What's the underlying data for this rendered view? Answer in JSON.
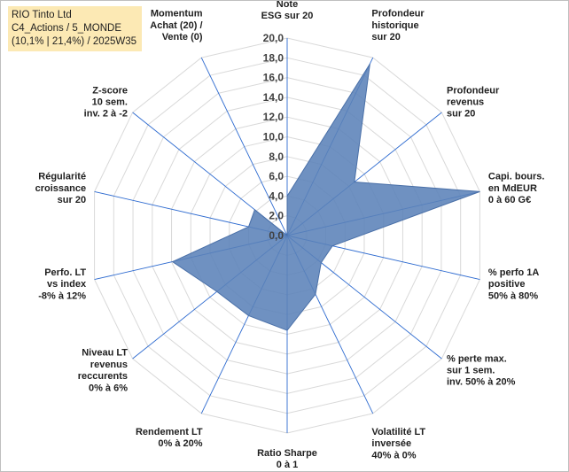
{
  "header": {
    "line1": "RIO Tinto Ltd",
    "line2": "C4_Actions / 5_MONDE",
    "line3": "(10,1% | 21,4%) / 2025W35"
  },
  "chart_data": {
    "type": "radar",
    "rmin": 0,
    "rmax": 20,
    "ticks": [
      "0,0",
      "2,0",
      "4,0",
      "6,0",
      "8,0",
      "10,0",
      "12,0",
      "14,0",
      "16,0",
      "18,0",
      "20,0"
    ],
    "axes": [
      {
        "label": [
          "Note",
          "ESG sur 20"
        ]
      },
      {
        "label": [
          "Profondeur",
          "historique",
          "sur 20"
        ]
      },
      {
        "label": [
          "Profondeur",
          "revenus",
          "sur 20"
        ]
      },
      {
        "label": [
          "Capi. bours.",
          "en MdEUR",
          "0 à 60 G€"
        ]
      },
      {
        "label": [
          "% perfo 1A",
          "positive",
          "50% à 80%"
        ]
      },
      {
        "label": [
          "% perte max.",
          "sur 1 sem.",
          "inv. 50% à 20%"
        ]
      },
      {
        "label": [
          "Volatilité LT",
          "inversée",
          "40% à 0%"
        ]
      },
      {
        "label": [
          "Ratio Sharpe",
          "0 à 1"
        ]
      },
      {
        "label": [
          "Rendement LT",
          "0% à 20%"
        ]
      },
      {
        "label": [
          "Niveau LT",
          "revenus",
          "reccurents",
          "0% à 6%"
        ]
      },
      {
        "label": [
          "Perfo. LT",
          "vs index",
          "-8% à 12%"
        ]
      },
      {
        "label": [
          "Régularité",
          "croissance",
          "sur 20"
        ]
      },
      {
        "label": [
          "Z-score",
          "10 sem.",
          "inv. 2 à -2"
        ]
      },
      {
        "label": [
          "Momentum",
          "Achat (20) /",
          "Vente (0)"
        ]
      }
    ],
    "series": [
      {
        "values": [
          4.0,
          19.3,
          8.7,
          20.0,
          4.7,
          4.4,
          6.6,
          9.6,
          9.0,
          9.1,
          11.9,
          4.0,
          4.2,
          0.0
        ]
      }
    ],
    "colors": {
      "fill": "#5b82b8",
      "stroke": "#4a70a8",
      "grid": "#d9d9d9",
      "spoke": "#2e6bd0"
    }
  }
}
